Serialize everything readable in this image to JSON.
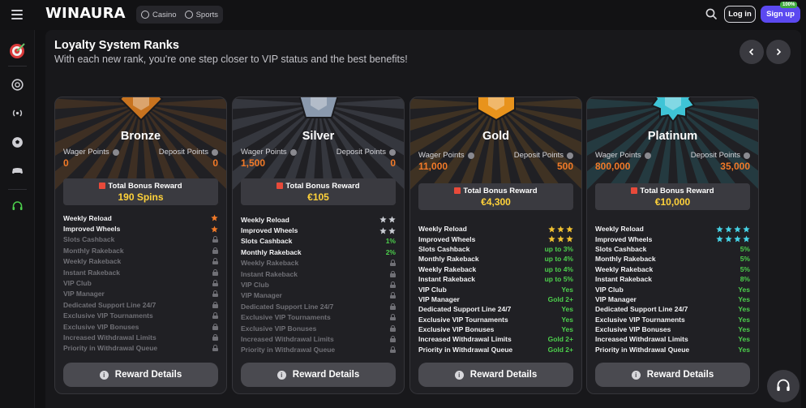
{
  "header": {
    "logo": "WINAURA",
    "nav": [
      {
        "label": "Casino",
        "icon": "casino-chip-icon"
      },
      {
        "label": "Sports",
        "icon": "soccer-ball-icon"
      }
    ],
    "login_label": "Log in",
    "signup_label": "Sign up",
    "signup_badge": "100%"
  },
  "sidebar": {
    "items": [
      {
        "icon": "target-dart-icon"
      },
      {
        "icon": "casino-chip-icon"
      },
      {
        "icon": "live-broadcast-icon"
      },
      {
        "icon": "soccer-ball-icon"
      },
      {
        "icon": "gamepad-icon"
      },
      {
        "icon": "headset-icon"
      }
    ]
  },
  "page": {
    "title": "Loyalty System Ranks",
    "subtitle": "With each new rank, you're one step closer to VIP status and the best benefits!"
  },
  "colors": {
    "accent_orange": "#f27a28",
    "bonus_yellow": "#ffd23a",
    "value_green": "#4ccf4c",
    "bronze": "#c8731f",
    "silver": "#8a99ad",
    "gold": "#e8931c",
    "platinum": "#3fc4d6",
    "signup_purple": "#5b49f0"
  },
  "ranks": [
    {
      "name": "Bronze",
      "wager_label": "Wager Points",
      "deposit_label": "Deposit Points",
      "wager_points": "0",
      "deposit_points": "0",
      "bonus_title": "Total Bonus Reward",
      "bonus_value": "190 Spins",
      "button_label": "Reward Details",
      "benefits": [
        {
          "label": "Weekly Reload",
          "type": "stars",
          "count": 1,
          "star_color": "#f27a28"
        },
        {
          "label": "Improved Wheels",
          "type": "stars",
          "count": 1,
          "star_color": "#f27a28"
        },
        {
          "label": "Slots Cashback",
          "type": "lock"
        },
        {
          "label": "Monthly Rakeback",
          "type": "lock"
        },
        {
          "label": "Weekly Rakeback",
          "type": "lock"
        },
        {
          "label": "Instant Rakeback",
          "type": "lock"
        },
        {
          "label": "VIP Club",
          "type": "lock"
        },
        {
          "label": "VIP Manager",
          "type": "lock"
        },
        {
          "label": "Dedicated Support Line 24/7",
          "type": "lock"
        },
        {
          "label": "Exclusive VIP Tournaments",
          "type": "lock"
        },
        {
          "label": "Exclusive VIP Bonuses",
          "type": "lock"
        },
        {
          "label": "Increased Withdrawal Limits",
          "type": "lock"
        },
        {
          "label": "Priority in Withdrawal Queue",
          "type": "lock"
        }
      ]
    },
    {
      "name": "Silver",
      "wager_label": "Wager Points",
      "deposit_label": "Deposit Points",
      "wager_points": "1,500",
      "deposit_points": "0",
      "bonus_title": "Total Bonus Reward",
      "bonus_value": "€105",
      "button_label": "Reward Details",
      "benefits": [
        {
          "label": "Weekly Reload",
          "type": "stars",
          "count": 2,
          "star_color": "#c9ccd3"
        },
        {
          "label": "Improved Wheels",
          "type": "stars",
          "count": 2,
          "star_color": "#c9ccd3"
        },
        {
          "label": "Slots Cashback",
          "type": "value",
          "value": "1%"
        },
        {
          "label": "Monthly Rakeback",
          "type": "value",
          "value": "2%"
        },
        {
          "label": "Weekly Rakeback",
          "type": "lock"
        },
        {
          "label": "Instant Rakeback",
          "type": "lock"
        },
        {
          "label": "VIP Club",
          "type": "lock"
        },
        {
          "label": "VIP Manager",
          "type": "lock"
        },
        {
          "label": "Dedicated Support Line 24/7",
          "type": "lock"
        },
        {
          "label": "Exclusive VIP Tournaments",
          "type": "lock"
        },
        {
          "label": "Exclusive VIP Bonuses",
          "type": "lock"
        },
        {
          "label": "Increased Withdrawal Limits",
          "type": "lock"
        },
        {
          "label": "Priority in Withdrawal Queue",
          "type": "lock"
        }
      ]
    },
    {
      "name": "Gold",
      "wager_label": "Wager Points",
      "deposit_label": "Deposit Points",
      "wager_points": "11,000",
      "deposit_points": "500",
      "bonus_title": "Total Bonus Reward",
      "bonus_value": "€4,300",
      "button_label": "Reward Details",
      "benefits": [
        {
          "label": "Weekly Reload",
          "type": "stars",
          "count": 3,
          "star_color": "#f2c230"
        },
        {
          "label": "Improved Wheels",
          "type": "stars",
          "count": 3,
          "star_color": "#f2c230"
        },
        {
          "label": "Slots Cashback",
          "type": "value",
          "value": "up to 3%"
        },
        {
          "label": "Monthly Rakeback",
          "type": "value",
          "value": "up to 4%"
        },
        {
          "label": "Weekly Rakeback",
          "type": "value",
          "value": "up to 4%"
        },
        {
          "label": "Instant Rakeback",
          "type": "value",
          "value": "up to 5%"
        },
        {
          "label": "VIP Club",
          "type": "value",
          "value": "Yes"
        },
        {
          "label": "VIP Manager",
          "type": "value",
          "value": "Gold 2+"
        },
        {
          "label": "Dedicated Support Line 24/7",
          "type": "value",
          "value": "Yes"
        },
        {
          "label": "Exclusive VIP Tournaments",
          "type": "value",
          "value": "Yes"
        },
        {
          "label": "Exclusive VIP Bonuses",
          "type": "value",
          "value": "Yes"
        },
        {
          "label": "Increased Withdrawal Limits",
          "type": "value",
          "value": "Gold 2+"
        },
        {
          "label": "Priority in Withdrawal Queue",
          "type": "value",
          "value": "Gold 2+"
        }
      ]
    },
    {
      "name": "Platinum",
      "wager_label": "Wager Points",
      "deposit_label": "Deposit Points",
      "wager_points": "800,000",
      "deposit_points": "35,000",
      "bonus_title": "Total Bonus Reward",
      "bonus_value": "€10,000",
      "button_label": "Reward Details",
      "benefits": [
        {
          "label": "Weekly Reload",
          "type": "stars",
          "count": 4,
          "star_color": "#46d3e6"
        },
        {
          "label": "Improved Wheels",
          "type": "stars",
          "count": 4,
          "star_color": "#46d3e6"
        },
        {
          "label": "Slots Cashback",
          "type": "value",
          "value": "5%"
        },
        {
          "label": "Monthly Rakeback",
          "type": "value",
          "value": "5%"
        },
        {
          "label": "Weekly Rakeback",
          "type": "value",
          "value": "5%"
        },
        {
          "label": "Instant Rakeback",
          "type": "value",
          "value": "8%"
        },
        {
          "label": "VIP Club",
          "type": "value",
          "value": "Yes"
        },
        {
          "label": "VIP Manager",
          "type": "value",
          "value": "Yes"
        },
        {
          "label": "Dedicated Support Line 24/7",
          "type": "value",
          "value": "Yes"
        },
        {
          "label": "Exclusive VIP Tournaments",
          "type": "value",
          "value": "Yes"
        },
        {
          "label": "Exclusive VIP Bonuses",
          "type": "value",
          "value": "Yes"
        },
        {
          "label": "Increased Withdrawal Limits",
          "type": "value",
          "value": "Yes"
        },
        {
          "label": "Priority in Withdrawal Queue",
          "type": "value",
          "value": "Yes"
        }
      ]
    }
  ]
}
